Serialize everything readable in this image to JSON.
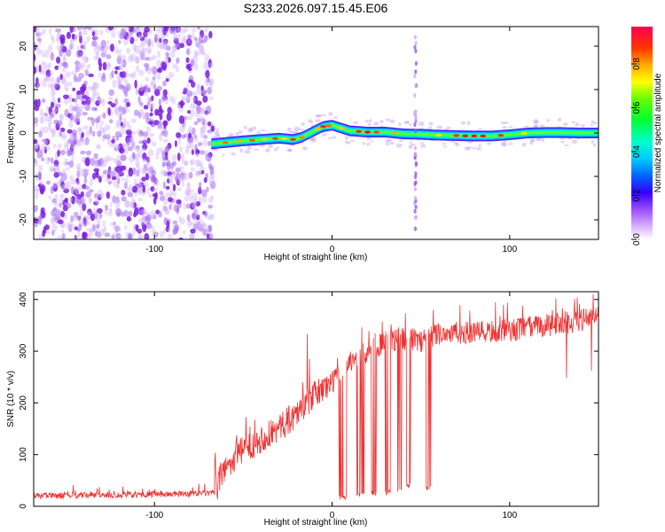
{
  "title": "S233.2026.097.15.45.E06",
  "chart_data": [
    {
      "type": "heatmap",
      "name": "spectrogram",
      "xlabel": "Height of straight line (km)",
      "ylabel": "Frequency (Hz)",
      "xlim": [
        -168,
        150
      ],
      "ylim": [
        -24.5,
        24.5
      ],
      "xticks": [
        -100,
        0,
        100
      ],
      "yticks": [
        -20,
        -10,
        0,
        10,
        20
      ],
      "noise_region_x": [
        -168,
        -67
      ],
      "tone_start_x": -68,
      "spike_x": 47,
      "tone_track": {
        "x": [
          -68,
          -60,
          -50,
          -40,
          -30,
          -22,
          -17,
          -10,
          -5,
          0,
          10,
          20,
          30,
          40,
          50,
          60,
          70,
          80,
          90,
          100,
          110,
          120,
          130,
          140,
          150
        ],
        "freq": [
          -2.5,
          -2.2,
          -1.8,
          -1.5,
          -1.2,
          -1.5,
          -1.0,
          0.5,
          1.5,
          1.8,
          0.5,
          0.2,
          0.2,
          -0.2,
          -0.3,
          -0.5,
          -0.6,
          -0.7,
          -0.7,
          -0.4,
          0.0,
          0.1,
          0.1,
          0.0,
          0.0
        ]
      },
      "colorbar": {
        "label": "Normalized spectral amplitude",
        "ticks": [
          0.0,
          0.2,
          0.4,
          0.6,
          0.8
        ],
        "tick_labels": [
          "0.0",
          "0.2",
          "0.4",
          "0.6",
          "0.8"
        ],
        "range": [
          0.0,
          0.97
        ]
      }
    },
    {
      "type": "line",
      "name": "snr",
      "xlabel": "Height of straight line (km)",
      "ylabel": "SNR (10 * v/v)",
      "xlim": [
        -168,
        150
      ],
      "ylim": [
        0,
        415
      ],
      "xticks": [
        -100,
        0,
        100
      ],
      "yticks": [
        0,
        100,
        200,
        300,
        400
      ],
      "color": "#ee3333",
      "trend": {
        "x": [
          -168,
          -100,
          -66,
          -62,
          -50,
          -40,
          -30,
          -20,
          -10,
          0,
          10,
          20,
          30,
          40,
          50,
          60,
          80,
          100,
          120,
          150
        ],
        "y": [
          20,
          23,
          25,
          65,
          110,
          130,
          150,
          180,
          215,
          240,
          280,
          300,
          320,
          325,
          320,
          335,
          335,
          340,
          350,
          365
        ]
      },
      "dropouts": [
        {
          "x": [
            4,
            8
          ],
          "y": 12
        },
        {
          "x": [
            14,
            18
          ],
          "y": 18
        },
        {
          "x": [
            22,
            25
          ],
          "y": 20
        },
        {
          "x": [
            30,
            33
          ],
          "y": 22
        },
        {
          "x": [
            37,
            39
          ],
          "y": 25
        },
        {
          "x": [
            42,
            44
          ],
          "y": 35
        },
        {
          "x": [
            53,
            56
          ],
          "y": 30
        }
      ],
      "spikes": [
        {
          "x": -14,
          "y": 333
        },
        {
          "x": 126,
          "y": 402
        },
        {
          "x": 147,
          "y": 410
        }
      ],
      "dips": [
        {
          "x": 132,
          "y": 248
        },
        {
          "x": 146,
          "y": 262
        }
      ]
    }
  ],
  "colors": {
    "noise_purple": "#8a2be2",
    "line_red": "#ee3333",
    "axis": "#000000"
  }
}
